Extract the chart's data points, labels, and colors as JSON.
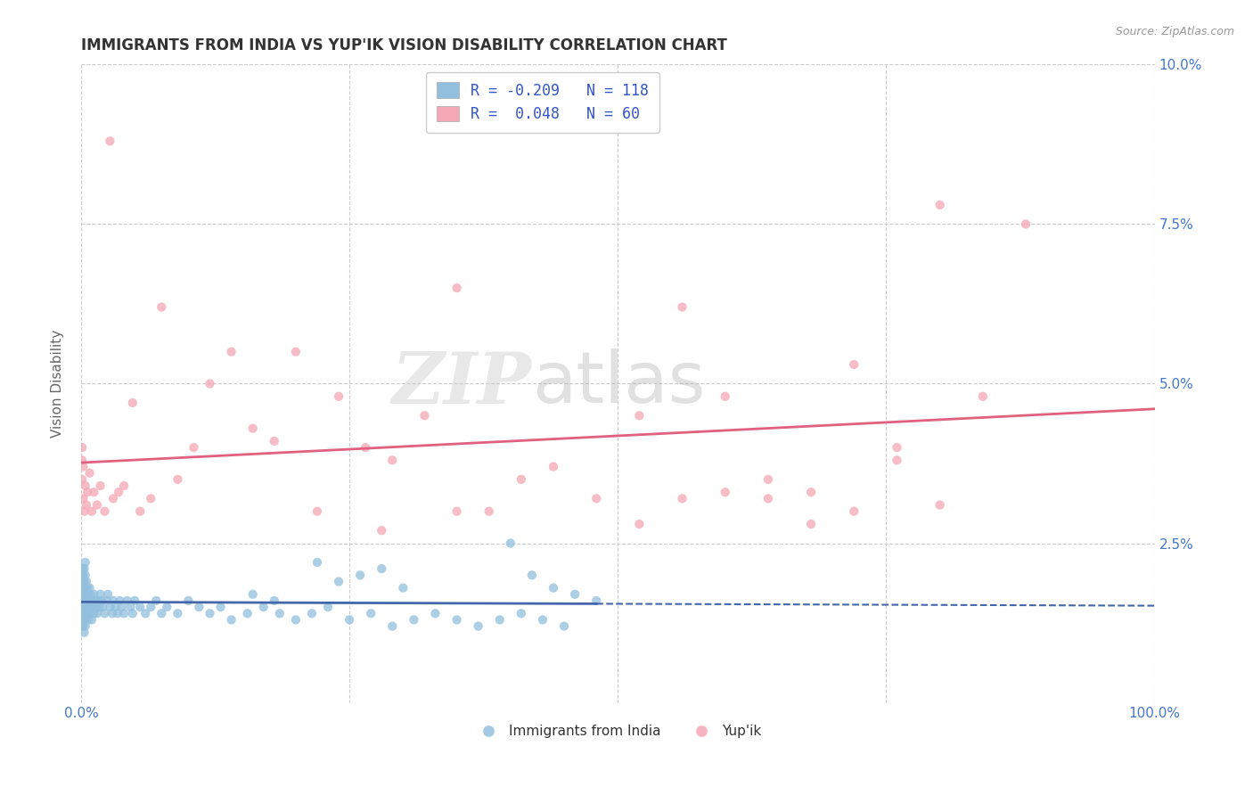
{
  "title": "IMMIGRANTS FROM INDIA VS YUP'IK VISION DISABILITY CORRELATION CHART",
  "source": "Source: ZipAtlas.com",
  "ylabel": "Vision Disability",
  "xlim": [
    0,
    1.0
  ],
  "ylim": [
    0,
    0.1
  ],
  "xticks": [
    0.0,
    0.25,
    0.5,
    0.75,
    1.0
  ],
  "xticklabels": [
    "0.0%",
    "",
    "",
    "",
    "100.0%"
  ],
  "yticks": [
    0.0,
    0.025,
    0.05,
    0.075,
    0.1
  ],
  "yticklabels_right": [
    "",
    "2.5%",
    "5.0%",
    "7.5%",
    "10.0%"
  ],
  "legend_labels": [
    "Immigrants from India",
    "Yup'ik"
  ],
  "legend_r": [
    -0.209,
    0.048
  ],
  "legend_n": [
    118,
    60
  ],
  "blue_color": "#92BFDE",
  "pink_color": "#F4A7B5",
  "blue_line_color": "#4466AA",
  "pink_line_color": "#E06080",
  "watermark_zip": "ZIP",
  "watermark_atlas": "atlas",
  "background_color": "#FFFFFF",
  "grid_color": "#CCCCCC",
  "title_color": "#333333",
  "axis_label_color": "#666666",
  "tick_label_color": "#4477CC",
  "legend_r_color": "#3355CC",
  "blue_scatter_x": [
    0.001,
    0.001,
    0.001,
    0.001,
    0.001,
    0.001,
    0.001,
    0.001,
    0.001,
    0.001,
    0.002,
    0.002,
    0.002,
    0.002,
    0.002,
    0.002,
    0.002,
    0.002,
    0.002,
    0.002,
    0.003,
    0.003,
    0.003,
    0.003,
    0.003,
    0.003,
    0.003,
    0.003,
    0.004,
    0.004,
    0.004,
    0.004,
    0.004,
    0.004,
    0.005,
    0.005,
    0.005,
    0.005,
    0.006,
    0.006,
    0.006,
    0.007,
    0.007,
    0.007,
    0.008,
    0.008,
    0.008,
    0.009,
    0.009,
    0.01,
    0.01,
    0.011,
    0.012,
    0.012,
    0.013,
    0.014,
    0.015,
    0.016,
    0.017,
    0.018,
    0.019,
    0.02,
    0.022,
    0.024,
    0.025,
    0.027,
    0.029,
    0.03,
    0.032,
    0.034,
    0.036,
    0.038,
    0.04,
    0.043,
    0.046,
    0.048,
    0.05,
    0.055,
    0.06,
    0.065,
    0.07,
    0.075,
    0.08,
    0.09,
    0.1,
    0.11,
    0.12,
    0.13,
    0.14,
    0.155,
    0.17,
    0.185,
    0.2,
    0.215,
    0.23,
    0.25,
    0.27,
    0.29,
    0.31,
    0.33,
    0.35,
    0.37,
    0.39,
    0.41,
    0.43,
    0.45,
    0.4,
    0.42,
    0.44,
    0.46,
    0.48,
    0.3,
    0.28,
    0.26,
    0.24,
    0.22,
    0.16,
    0.18
  ],
  "blue_scatter_y": [
    0.018,
    0.016,
    0.014,
    0.013,
    0.012,
    0.015,
    0.017,
    0.019,
    0.021,
    0.02,
    0.012,
    0.014,
    0.015,
    0.016,
    0.018,
    0.019,
    0.02,
    0.013,
    0.017,
    0.021,
    0.011,
    0.013,
    0.015,
    0.016,
    0.018,
    0.019,
    0.021,
    0.017,
    0.012,
    0.014,
    0.016,
    0.018,
    0.02,
    0.022,
    0.013,
    0.015,
    0.017,
    0.019,
    0.014,
    0.016,
    0.018,
    0.013,
    0.015,
    0.017,
    0.014,
    0.016,
    0.018,
    0.015,
    0.017,
    0.013,
    0.016,
    0.015,
    0.014,
    0.017,
    0.016,
    0.015,
    0.014,
    0.016,
    0.015,
    0.017,
    0.016,
    0.015,
    0.014,
    0.016,
    0.017,
    0.015,
    0.014,
    0.016,
    0.015,
    0.014,
    0.016,
    0.015,
    0.014,
    0.016,
    0.015,
    0.014,
    0.016,
    0.015,
    0.014,
    0.015,
    0.016,
    0.014,
    0.015,
    0.014,
    0.016,
    0.015,
    0.014,
    0.015,
    0.013,
    0.014,
    0.015,
    0.014,
    0.013,
    0.014,
    0.015,
    0.013,
    0.014,
    0.012,
    0.013,
    0.014,
    0.013,
    0.012,
    0.013,
    0.014,
    0.013,
    0.012,
    0.025,
    0.02,
    0.018,
    0.017,
    0.016,
    0.018,
    0.021,
    0.02,
    0.019,
    0.022,
    0.017,
    0.016
  ],
  "pink_scatter_x": [
    0.001,
    0.001,
    0.001,
    0.002,
    0.002,
    0.003,
    0.004,
    0.005,
    0.006,
    0.008,
    0.01,
    0.012,
    0.015,
    0.018,
    0.022,
    0.027,
    0.03,
    0.035,
    0.04,
    0.048,
    0.055,
    0.065,
    0.075,
    0.09,
    0.105,
    0.12,
    0.14,
    0.16,
    0.18,
    0.2,
    0.22,
    0.24,
    0.265,
    0.29,
    0.32,
    0.35,
    0.38,
    0.41,
    0.44,
    0.48,
    0.52,
    0.56,
    0.6,
    0.64,
    0.68,
    0.72,
    0.76,
    0.8,
    0.84,
    0.88,
    0.52,
    0.56,
    0.6,
    0.64,
    0.68,
    0.72,
    0.76,
    0.8,
    0.35,
    0.28
  ],
  "pink_scatter_y": [
    0.035,
    0.038,
    0.04,
    0.032,
    0.037,
    0.03,
    0.034,
    0.031,
    0.033,
    0.036,
    0.03,
    0.033,
    0.031,
    0.034,
    0.03,
    0.088,
    0.032,
    0.033,
    0.034,
    0.047,
    0.03,
    0.032,
    0.062,
    0.035,
    0.04,
    0.05,
    0.055,
    0.043,
    0.041,
    0.055,
    0.03,
    0.048,
    0.04,
    0.038,
    0.045,
    0.065,
    0.03,
    0.035,
    0.037,
    0.032,
    0.045,
    0.062,
    0.033,
    0.032,
    0.028,
    0.053,
    0.04,
    0.078,
    0.048,
    0.075,
    0.028,
    0.032,
    0.048,
    0.035,
    0.033,
    0.03,
    0.038,
    0.031,
    0.03,
    0.027
  ]
}
